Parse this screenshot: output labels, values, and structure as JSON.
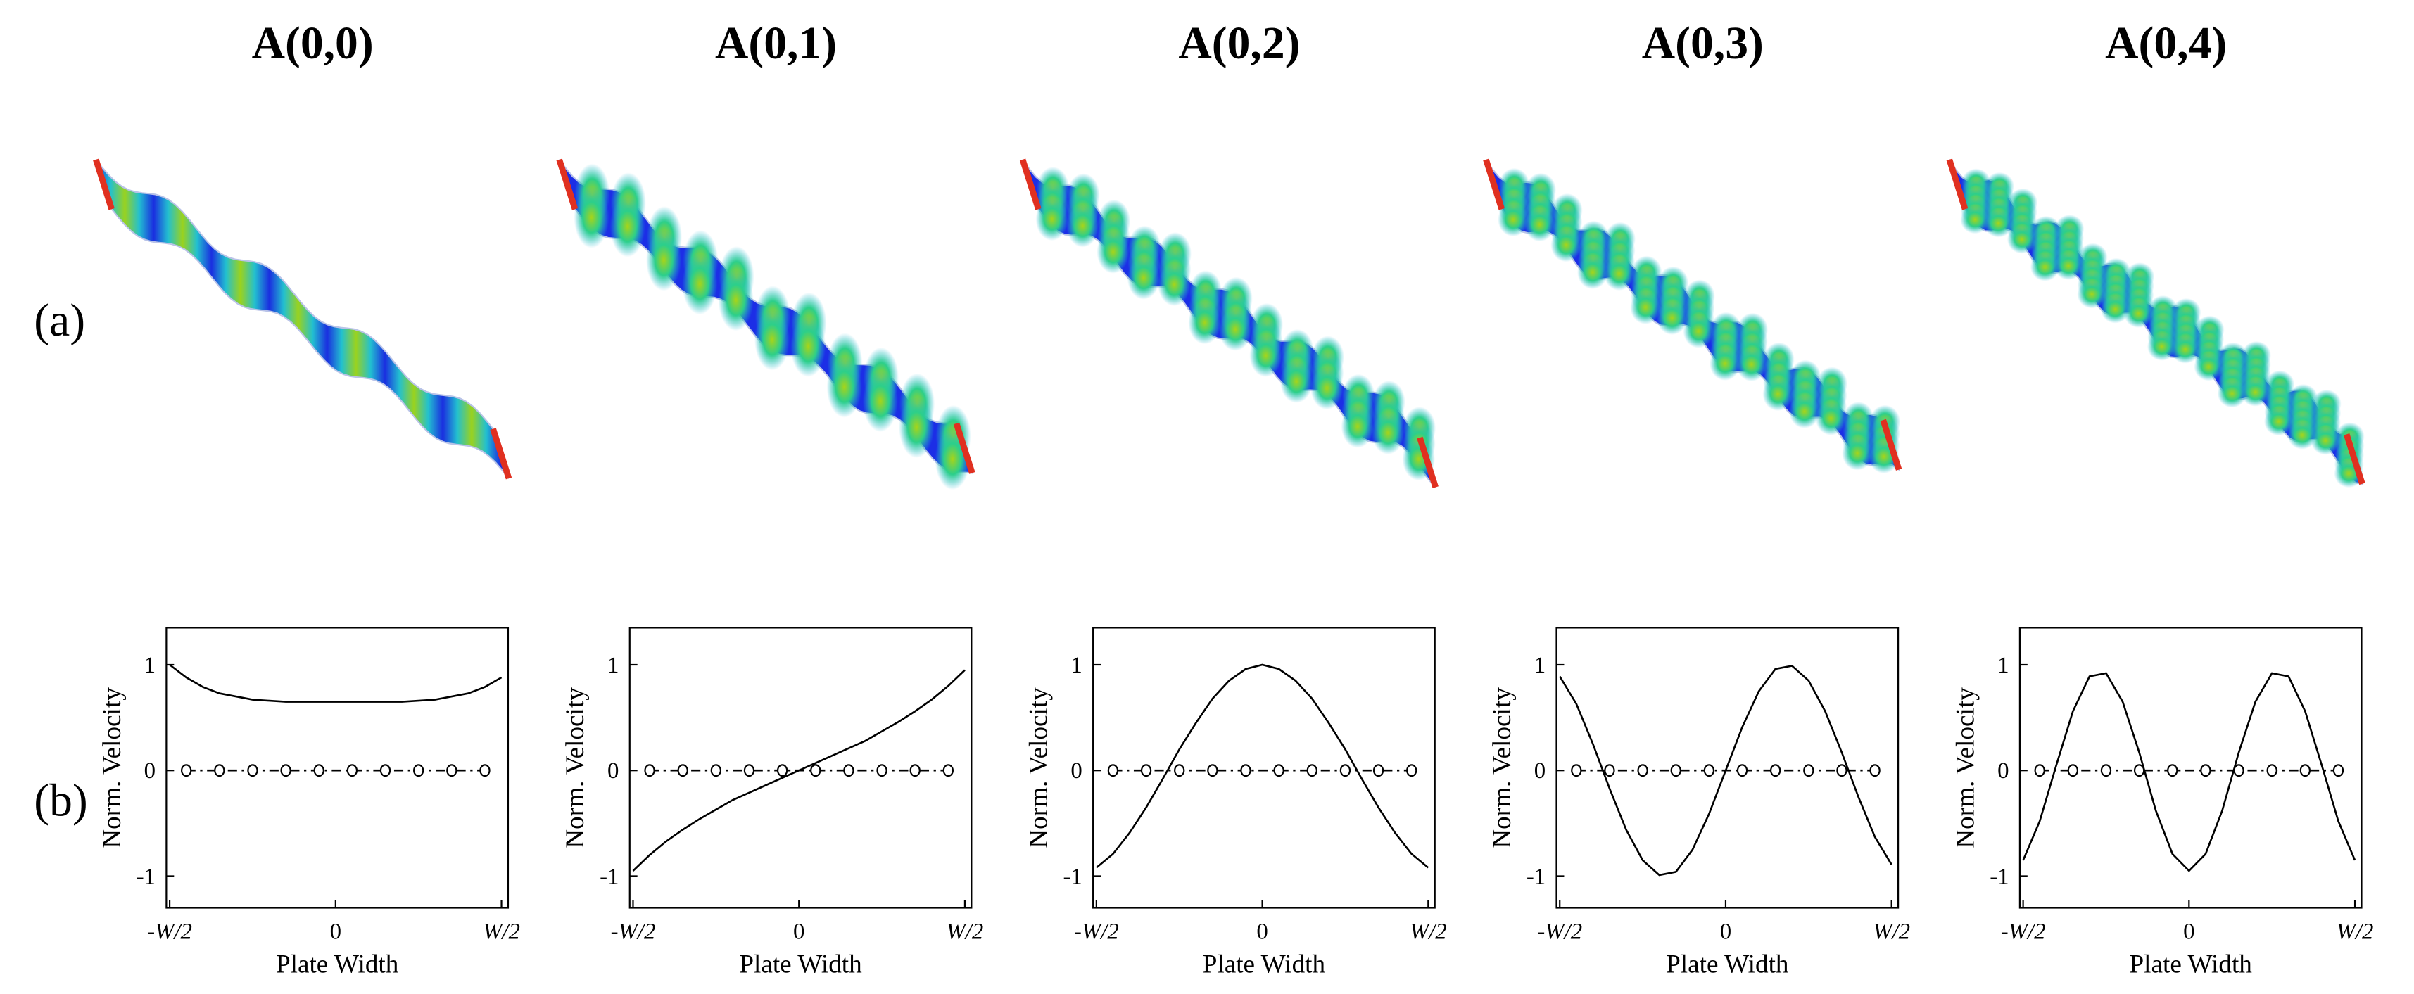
{
  "row_labels": [
    "(a)",
    "(b)"
  ],
  "chart_data": [
    {
      "type": "line",
      "title": "A(0,0)",
      "x_label": "Plate Width",
      "y_label": "Norm. Velocity",
      "x": [
        -0.5,
        -0.45,
        -0.4,
        -0.35,
        -0.3,
        -0.25,
        -0.2,
        -0.15,
        -0.1,
        -0.05,
        0,
        0.05,
        0.1,
        0.15,
        0.2,
        0.25,
        0.3,
        0.35,
        0.4,
        0.45,
        0.5
      ],
      "series": [
        {
          "color": "#000000",
          "values": [
            1.0,
            0.88,
            0.79,
            0.73,
            0.7,
            0.67,
            0.66,
            0.65,
            0.65,
            0.65,
            0.65,
            0.65,
            0.65,
            0.65,
            0.65,
            0.66,
            0.67,
            0.7,
            0.73,
            0.79,
            0.88
          ]
        },
        {
          "color": "#000000",
          "marker": "o",
          "linestyle": "dashdot",
          "x": [
            -0.45,
            -0.35,
            -0.25,
            -0.15,
            -0.05,
            0.05,
            0.15,
            0.25,
            0.35,
            0.45
          ],
          "values": [
            0,
            0,
            0,
            0,
            0,
            0,
            0,
            0,
            0,
            0
          ]
        }
      ],
      "xlim": [
        -0.51,
        0.52
      ],
      "ylim": [
        -1.3,
        1.35
      ],
      "xticks": [
        {
          "value": -0.5,
          "label": "-W/2"
        },
        0,
        {
          "value": 0.5,
          "label": "W/2"
        }
      ],
      "yticks": [
        -1,
        0,
        1
      ]
    },
    {
      "type": "line",
      "title": "A(0,1)",
      "x_label": "Plate Width",
      "y_label": "Norm. Velocity",
      "x": [
        -0.5,
        -0.45,
        -0.4,
        -0.35,
        -0.3,
        -0.25,
        -0.2,
        -0.15,
        -0.1,
        -0.05,
        0,
        0.05,
        0.1,
        0.15,
        0.2,
        0.25,
        0.3,
        0.35,
        0.4,
        0.45,
        0.5
      ],
      "series": [
        {
          "color": "#000000",
          "values": [
            -0.95,
            -0.8,
            -0.67,
            -0.56,
            -0.46,
            -0.37,
            -0.28,
            -0.21,
            -0.14,
            -0.07,
            0,
            0.07,
            0.14,
            0.21,
            0.28,
            0.37,
            0.46,
            0.56,
            0.67,
            0.8,
            0.95
          ]
        },
        {
          "color": "#000000",
          "marker": "o",
          "linestyle": "dashdot",
          "x": [
            -0.45,
            -0.35,
            -0.25,
            -0.15,
            -0.05,
            0.05,
            0.15,
            0.25,
            0.35,
            0.45
          ],
          "values": [
            0,
            0,
            0,
            0,
            0,
            0,
            0,
            0,
            0,
            0
          ]
        }
      ],
      "xlim": [
        -0.51,
        0.52
      ],
      "ylim": [
        -1.3,
        1.35
      ],
      "xticks": [
        {
          "value": -0.5,
          "label": "-W/2"
        },
        0,
        {
          "value": 0.5,
          "label": "W/2"
        }
      ],
      "yticks": [
        -1,
        0,
        1
      ]
    },
    {
      "type": "line",
      "title": "A(0,2)",
      "x_label": "Plate Width",
      "y_label": "Norm. Velocity",
      "x": [
        -0.5,
        -0.45,
        -0.4,
        -0.35,
        -0.3,
        -0.25,
        -0.2,
        -0.15,
        -0.1,
        -0.05,
        0,
        0.05,
        0.1,
        0.15,
        0.2,
        0.25,
        0.3,
        0.35,
        0.4,
        0.45,
        0.5
      ],
      "series": [
        {
          "color": "#000000",
          "values": [
            -0.92,
            -0.79,
            -0.59,
            -0.35,
            -0.08,
            0.2,
            0.45,
            0.68,
            0.85,
            0.96,
            1,
            0.96,
            0.85,
            0.68,
            0.45,
            0.2,
            -0.08,
            -0.35,
            -0.59,
            -0.79,
            -0.92
          ]
        },
        {
          "color": "#000000",
          "marker": "o",
          "linestyle": "dashdot",
          "x": [
            -0.45,
            -0.35,
            -0.25,
            -0.15,
            -0.05,
            0.05,
            0.15,
            0.25,
            0.35,
            0.45
          ],
          "values": [
            0,
            0,
            0,
            0,
            0,
            0,
            0,
            0,
            0,
            0
          ]
        }
      ],
      "xlim": [
        -0.51,
        0.52
      ],
      "ylim": [
        -1.3,
        1.35
      ],
      "xticks": [
        {
          "value": -0.5,
          "label": "-W/2"
        },
        0,
        {
          "value": 0.5,
          "label": "W/2"
        }
      ],
      "yticks": [
        -1,
        0,
        1
      ]
    },
    {
      "type": "line",
      "title": "A(0,3)",
      "x_label": "Plate Width",
      "y_label": "Norm. Velocity",
      "x": [
        -0.5,
        -0.45,
        -0.4,
        -0.35,
        -0.3,
        -0.25,
        -0.2,
        -0.15,
        -0.1,
        -0.05,
        0,
        0.05,
        0.1,
        0.15,
        0.2,
        0.25,
        0.3,
        0.35,
        0.4,
        0.45,
        0.5
      ],
      "series": [
        {
          "color": "#000000",
          "values": [
            0.89,
            0.63,
            0.25,
            -0.17,
            -0.56,
            -0.85,
            -0.99,
            -0.96,
            -0.75,
            -0.41,
            0,
            0.41,
            0.75,
            0.96,
            0.99,
            0.85,
            0.56,
            0.17,
            -0.25,
            -0.63,
            -0.89
          ]
        },
        {
          "color": "#000000",
          "marker": "o",
          "linestyle": "dashdot",
          "x": [
            -0.45,
            -0.35,
            -0.25,
            -0.15,
            -0.05,
            0.05,
            0.15,
            0.25,
            0.35,
            0.45
          ],
          "values": [
            0,
            0,
            0,
            0,
            0,
            0,
            0,
            0,
            0,
            0
          ]
        }
      ],
      "xlim": [
        -0.51,
        0.52
      ],
      "ylim": [
        -1.3,
        1.35
      ],
      "xticks": [
        {
          "value": -0.5,
          "label": "-W/2"
        },
        0,
        {
          "value": 0.5,
          "label": "W/2"
        }
      ],
      "yticks": [
        -1,
        0,
        1
      ]
    },
    {
      "type": "line",
      "title": "A(0,4)",
      "x_label": "Plate Width",
      "y_label": "Norm. Velocity",
      "x": [
        -0.5,
        -0.45,
        -0.4,
        -0.35,
        -0.3,
        -0.25,
        -0.2,
        -0.15,
        -0.1,
        -0.05,
        0,
        0.05,
        0.1,
        0.15,
        0.2,
        0.25,
        0.3,
        0.35,
        0.4,
        0.45,
        0.5
      ],
      "series": [
        {
          "color": "#000000",
          "values": [
            -0.85,
            -0.48,
            0.05,
            0.56,
            0.89,
            0.92,
            0.65,
            0.17,
            -0.38,
            -0.79,
            -0.95,
            -0.79,
            -0.38,
            0.17,
            0.65,
            0.92,
            0.89,
            0.56,
            0.05,
            -0.48,
            -0.85
          ]
        },
        {
          "color": "#000000",
          "marker": "o",
          "linestyle": "dashdot",
          "x": [
            -0.45,
            -0.35,
            -0.25,
            -0.15,
            -0.05,
            0.05,
            0.15,
            0.25,
            0.35,
            0.45
          ],
          "values": [
            0,
            0,
            0,
            0,
            0,
            0,
            0,
            0,
            0,
            0
          ]
        }
      ],
      "xlim": [
        -0.51,
        0.52
      ],
      "ylim": [
        -1.3,
        1.35
      ],
      "xticks": [
        {
          "value": -0.5,
          "label": "-W/2"
        },
        0,
        {
          "value": 0.5,
          "label": "W/2"
        }
      ],
      "yticks": [
        -1,
        0,
        1
      ]
    }
  ]
}
